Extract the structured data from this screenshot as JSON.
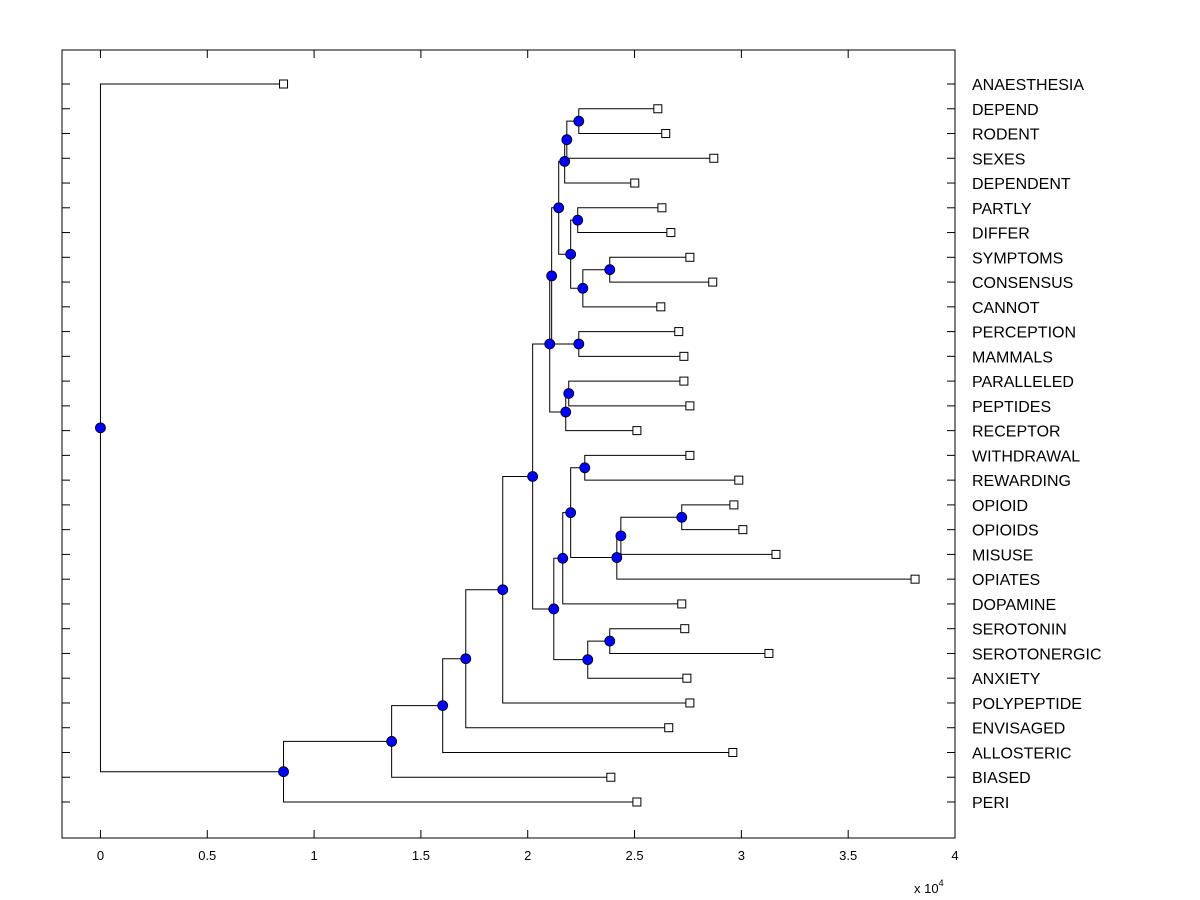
{
  "chart_data": {
    "type": "dendrogram",
    "orientation": "horizontal",
    "xlim": [
      -0.18,
      4
    ],
    "x_ticks": [
      "0",
      "0.5",
      "1",
      "1.5",
      "2",
      "2.5",
      "3",
      "3.5",
      "4"
    ],
    "x_tick_values": [
      0,
      0.5,
      1,
      1.5,
      2,
      2.5,
      3,
      3.5,
      4
    ],
    "x_multiplier": {
      "base": "x 10",
      "exponent": "4"
    },
    "grid": false,
    "colors": {
      "node_fill": "#0000ff",
      "line": "#000000",
      "leaf_fill": "#ffffff"
    },
    "leaves": [
      {
        "name": "ANAESTHESIA",
        "value": 0.857
      },
      {
        "name": "DEPEND",
        "value": 2.609
      },
      {
        "name": "RODENT",
        "value": 2.646
      },
      {
        "name": "SEXES",
        "value": 2.871
      },
      {
        "name": "DEPENDENT",
        "value": 2.501
      },
      {
        "name": "PARTLY",
        "value": 2.628
      },
      {
        "name": "DIFFER",
        "value": 2.67
      },
      {
        "name": "SYMPTOMS",
        "value": 2.759
      },
      {
        "name": "CONSENSUS",
        "value": 2.866
      },
      {
        "name": "CANNOT",
        "value": 2.623
      },
      {
        "name": "PERCEPTION",
        "value": 2.707
      },
      {
        "name": "MAMMALS",
        "value": 2.731
      },
      {
        "name": "PARALLELED",
        "value": 2.731
      },
      {
        "name": "PEPTIDES",
        "value": 2.759
      },
      {
        "name": "RECEPTOR",
        "value": 2.511
      },
      {
        "name": "WITHDRAWAL",
        "value": 2.759
      },
      {
        "name": "REWARDING",
        "value": 2.988
      },
      {
        "name": "OPIOID",
        "value": 2.965
      },
      {
        "name": "OPIOIDS",
        "value": 3.007
      },
      {
        "name": "MISUSE",
        "value": 3.162
      },
      {
        "name": "OPIATES",
        "value": 3.813
      },
      {
        "name": "DOPAMINE",
        "value": 2.721
      },
      {
        "name": "SEROTONIN",
        "value": 2.735
      },
      {
        "name": "SEROTONERGIC",
        "value": 3.129
      },
      {
        "name": "ANXIETY",
        "value": 2.745
      },
      {
        "name": "POLYPEPTIDE",
        "value": 2.759
      },
      {
        "name": "ENVISAGED",
        "value": 2.66
      },
      {
        "name": "ALLOSTERIC",
        "value": 2.96
      },
      {
        "name": "BIASED",
        "value": 2.389
      },
      {
        "name": "PERI",
        "value": 2.511
      }
    ],
    "merges": [
      {
        "id": "n1",
        "children": [
          "DEPEND",
          "RODENT"
        ],
        "value": 2.239
      },
      {
        "id": "n2",
        "children": [
          "n1",
          "SEXES"
        ],
        "value": 2.183
      },
      {
        "id": "n3",
        "children": [
          "n2",
          "DEPENDENT"
        ],
        "value": 2.173
      },
      {
        "id": "n4",
        "children": [
          "PARTLY",
          "DIFFER"
        ],
        "value": 2.234
      },
      {
        "id": "n5",
        "children": [
          "SYMPTOMS",
          "CONSENSUS"
        ],
        "value": 2.384
      },
      {
        "id": "n6",
        "children": [
          "n5",
          "CANNOT"
        ],
        "value": 2.258
      },
      {
        "id": "n7",
        "children": [
          "n4",
          "n6"
        ],
        "value": 2.201
      },
      {
        "id": "n8",
        "children": [
          "n3",
          "n7"
        ],
        "value": 2.145
      },
      {
        "id": "n9",
        "children": [
          "PERCEPTION",
          "MAMMALS"
        ],
        "value": 2.239
      },
      {
        "id": "n10",
        "children": [
          "n8",
          "n9"
        ],
        "value": 2.112
      },
      {
        "id": "n11",
        "children": [
          "PARALLELED",
          "PEPTIDES"
        ],
        "value": 2.192
      },
      {
        "id": "n12",
        "children": [
          "n11",
          "RECEPTOR"
        ],
        "value": 2.178
      },
      {
        "id": "n13",
        "children": [
          "n10",
          "n12"
        ],
        "value": 2.103
      },
      {
        "id": "n14",
        "children": [
          "WITHDRAWAL",
          "REWARDING"
        ],
        "value": 2.267
      },
      {
        "id": "n15",
        "children": [
          "OPIOID",
          "OPIOIDS"
        ],
        "value": 2.721
      },
      {
        "id": "n16",
        "children": [
          "n15",
          "MISUSE"
        ],
        "value": 2.436
      },
      {
        "id": "n17",
        "children": [
          "n16",
          "OPIATES"
        ],
        "value": 2.417
      },
      {
        "id": "n18",
        "children": [
          "n14",
          "n17"
        ],
        "value": 2.201
      },
      {
        "id": "n19",
        "children": [
          "n18",
          "DOPAMINE"
        ],
        "value": 2.164
      },
      {
        "id": "n20",
        "children": [
          "SEROTONIN",
          "SEROTONERGIC"
        ],
        "value": 2.384
      },
      {
        "id": "n21",
        "children": [
          "n20",
          "ANXIETY"
        ],
        "value": 2.281
      },
      {
        "id": "n22",
        "children": [
          "n19",
          "n21"
        ],
        "value": 2.122
      },
      {
        "id": "n23",
        "children": [
          "n13",
          "n22"
        ],
        "value": 2.023
      },
      {
        "id": "n24",
        "children": [
          "n23",
          "POLYPEPTIDE"
        ],
        "value": 1.883
      },
      {
        "id": "n25",
        "children": [
          "n24",
          "ENVISAGED"
        ],
        "value": 1.71
      },
      {
        "id": "n26",
        "children": [
          "n25",
          "ALLOSTERIC"
        ],
        "value": 1.602
      },
      {
        "id": "n27",
        "children": [
          "n26",
          "BIASED"
        ],
        "value": 1.363
      },
      {
        "id": "n28",
        "children": [
          "n27",
          "PERI"
        ],
        "value": 0.857
      },
      {
        "id": "n29",
        "children": [
          "ANAESTHESIA",
          "n28"
        ],
        "value": 0
      }
    ]
  }
}
